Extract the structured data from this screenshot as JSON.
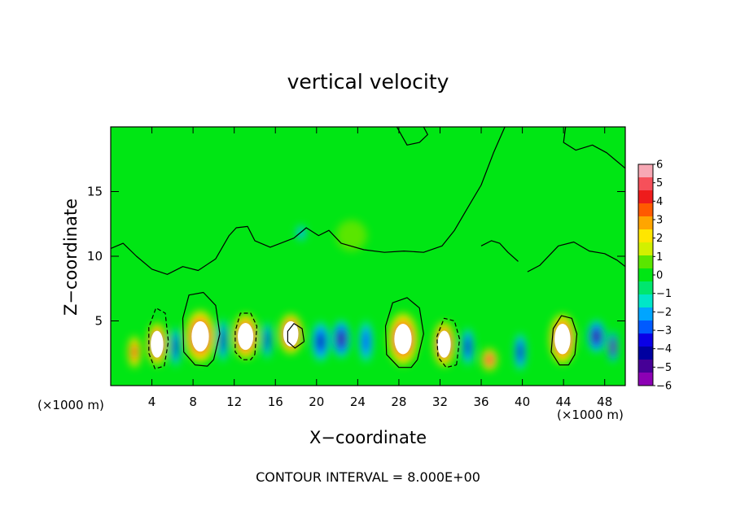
{
  "chart_data": {
    "type": "heatmap",
    "title": "vertical velocity",
    "xlabel": "X−coordinate",
    "ylabel": "Z−coordinate",
    "x_unit": "(×1000 m)",
    "contour_note": "CONTOUR INTERVAL = 8.000E+00",
    "xlim": [
      0,
      50
    ],
    "ylim": [
      0,
      20
    ],
    "x_ticks": [
      4,
      8,
      12,
      16,
      20,
      24,
      28,
      32,
      36,
      40,
      44,
      48
    ],
    "y_ticks": [
      5,
      10,
      15
    ],
    "colorbar": {
      "range": [
        -6,
        6
      ],
      "tick_labels": [
        "6",
        "5",
        "4",
        "3",
        "2",
        "1",
        "0",
        "−1",
        "−2",
        "−3",
        "−4",
        "−5",
        "−6"
      ],
      "colors": [
        "#f7a8b4",
        "#f6505a",
        "#ee1c1c",
        "#ff5a00",
        "#ffa500",
        "#ffe600",
        "#d2f000",
        "#5ae600",
        "#00e614",
        "#00e66e",
        "#00e6c8",
        "#00a5ff",
        "#005aff",
        "#0a00e6",
        "#0000a0",
        "#460096",
        "#8c00b4"
      ]
    },
    "cells": [
      {
        "x": 2.3,
        "z": 2.6,
        "w": 1.3,
        "h": 2.6,
        "value": 4
      },
      {
        "x": 4.5,
        "z": 3.2,
        "w": 2.0,
        "h": 3.4,
        "value": 7
      },
      {
        "x": 6.3,
        "z": 3.0,
        "w": 1.0,
        "h": 3.2,
        "value": -4
      },
      {
        "x": 8.7,
        "z": 3.8,
        "w": 3.0,
        "h": 4.2,
        "value": 12
      },
      {
        "x": 10.9,
        "z": 3.5,
        "w": 1.0,
        "h": 3.5,
        "value": -4
      },
      {
        "x": 13.1,
        "z": 3.8,
        "w": 2.6,
        "h": 3.6,
        "value": 10
      },
      {
        "x": 15.2,
        "z": 3.5,
        "w": 0.9,
        "h": 3.0,
        "value": -4
      },
      {
        "x": 17.5,
        "z": 4.0,
        "w": 2.4,
        "h": 3.2,
        "value": 7
      },
      {
        "x": 20.4,
        "z": 3.4,
        "w": 1.8,
        "h": 3.2,
        "value": -4
      },
      {
        "x": 22.4,
        "z": 3.6,
        "w": 1.8,
        "h": 3.0,
        "value": -5
      },
      {
        "x": 24.8,
        "z": 3.4,
        "w": 1.4,
        "h": 3.4,
        "value": -3
      },
      {
        "x": 28.4,
        "z": 3.6,
        "w": 3.0,
        "h": 4.2,
        "value": 12
      },
      {
        "x": 32.4,
        "z": 3.2,
        "w": 2.2,
        "h": 3.6,
        "value": 10
      },
      {
        "x": 34.7,
        "z": 3.0,
        "w": 1.2,
        "h": 3.0,
        "value": -4
      },
      {
        "x": 36.8,
        "z": 2.0,
        "w": 1.6,
        "h": 1.8,
        "value": 5
      },
      {
        "x": 39.8,
        "z": 2.6,
        "w": 1.2,
        "h": 3.0,
        "value": -4
      },
      {
        "x": 43.9,
        "z": 3.6,
        "w": 2.6,
        "h": 4.0,
        "value": 9
      },
      {
        "x": 47.2,
        "z": 3.8,
        "w": 1.8,
        "h": 2.6,
        "value": -5
      },
      {
        "x": 48.8,
        "z": 3.0,
        "w": 1.0,
        "h": 2.5,
        "value": -6
      },
      {
        "x": 18.5,
        "z": 11.8,
        "w": 1.0,
        "h": 1.3,
        "value": -2
      },
      {
        "x": 23.4,
        "z": 11.6,
        "w": 3.0,
        "h": 2.4,
        "value": 1
      }
    ],
    "contours": [
      {
        "level": 0,
        "points": [
          [
            0,
            10.6
          ],
          [
            1.2,
            11.0
          ],
          [
            2.5,
            10.0
          ],
          [
            4.0,
            9.0
          ],
          [
            5.5,
            8.6
          ],
          [
            7.0,
            9.2
          ],
          [
            8.5,
            8.9
          ],
          [
            10.2,
            9.8
          ],
          [
            11.5,
            11.6
          ],
          [
            12.2,
            12.2
          ],
          [
            13.3,
            12.3
          ],
          [
            14.0,
            11.2
          ],
          [
            15.5,
            10.7
          ],
          [
            16.5,
            11.0
          ],
          [
            17.8,
            11.4
          ],
          [
            19.0,
            12.2
          ],
          [
            20.2,
            11.6
          ],
          [
            21.2,
            12.0
          ],
          [
            22.4,
            11.0
          ],
          [
            24.6,
            10.5
          ],
          [
            26.6,
            10.3
          ],
          [
            28.5,
            10.4
          ],
          [
            30.4,
            10.3
          ],
          [
            32.2,
            10.8
          ],
          [
            33.4,
            12.0
          ],
          [
            34.5,
            13.5
          ],
          [
            36.0,
            15.5
          ],
          [
            37.2,
            18.0
          ],
          [
            38.3,
            20.0
          ]
        ]
      },
      {
        "level": 0,
        "points": [
          [
            27.8,
            20.0
          ],
          [
            28.8,
            18.6
          ],
          [
            30.0,
            18.8
          ],
          [
            30.8,
            19.4
          ],
          [
            30.4,
            20.0
          ]
        ]
      },
      {
        "level": 0,
        "points": [
          [
            44.2,
            20.0
          ],
          [
            44.0,
            18.8
          ],
          [
            45.2,
            18.2
          ],
          [
            46.8,
            18.6
          ],
          [
            48.2,
            18.0
          ],
          [
            50.0,
            16.8
          ]
        ]
      },
      {
        "level": 0,
        "points": [
          [
            40.5,
            8.8
          ],
          [
            41.7,
            9.3
          ],
          [
            43.5,
            10.8
          ],
          [
            45.0,
            11.1
          ],
          [
            46.5,
            10.4
          ],
          [
            48.0,
            10.2
          ],
          [
            49.2,
            9.7
          ],
          [
            50.0,
            9.2
          ]
        ]
      },
      {
        "level": 0,
        "points": [
          [
            36.0,
            10.8
          ],
          [
            37.0,
            11.2
          ],
          [
            37.8,
            11.0
          ],
          [
            38.6,
            10.3
          ],
          [
            39.6,
            9.6
          ]
        ]
      },
      {
        "level": 8,
        "points": [
          [
            10.0,
            2.0
          ],
          [
            10.6,
            4.0
          ],
          [
            10.2,
            6.2
          ],
          [
            9.0,
            7.2
          ],
          [
            7.6,
            7.0
          ],
          [
            7.0,
            5.2
          ],
          [
            7.1,
            2.6
          ],
          [
            8.2,
            1.6
          ],
          [
            9.4,
            1.5
          ],
          [
            10.0,
            2.0
          ]
        ]
      },
      {
        "level": 8,
        "points": [
          [
            29.8,
            2.0
          ],
          [
            30.4,
            4.0
          ],
          [
            30.0,
            6.0
          ],
          [
            28.8,
            6.8
          ],
          [
            27.4,
            6.4
          ],
          [
            26.7,
            4.6
          ],
          [
            26.8,
            2.4
          ],
          [
            28.0,
            1.4
          ],
          [
            29.2,
            1.4
          ],
          [
            29.8,
            2.0
          ]
        ]
      },
      {
        "level": 8,
        "points": [
          [
            45.1,
            2.4
          ],
          [
            45.3,
            4.0
          ],
          [
            44.8,
            5.2
          ],
          [
            43.8,
            5.4
          ],
          [
            43.0,
            4.4
          ],
          [
            42.8,
            2.6
          ],
          [
            43.6,
            1.6
          ],
          [
            44.5,
            1.6
          ],
          [
            45.1,
            2.4
          ]
        ]
      },
      {
        "level": 8,
        "points": [
          [
            18.8,
            3.4
          ],
          [
            18.6,
            4.4
          ],
          [
            17.8,
            4.8
          ],
          [
            17.2,
            4.2
          ],
          [
            17.2,
            3.4
          ],
          [
            17.9,
            2.9
          ],
          [
            18.8,
            3.4
          ]
        ]
      },
      {
        "level": -8,
        "points": [
          [
            5.2,
            1.5
          ],
          [
            5.6,
            3.4
          ],
          [
            5.3,
            5.6
          ],
          [
            4.4,
            6.0
          ],
          [
            3.7,
            4.5
          ],
          [
            3.7,
            2.5
          ],
          [
            4.3,
            1.3
          ],
          [
            5.2,
            1.5
          ]
        ]
      },
      {
        "level": -8,
        "points": [
          [
            14.0,
            2.4
          ],
          [
            14.2,
            4.6
          ],
          [
            13.6,
            5.6
          ],
          [
            12.6,
            5.6
          ],
          [
            12.1,
            4.2
          ],
          [
            12.1,
            2.6
          ],
          [
            12.8,
            2.0
          ],
          [
            13.6,
            2.0
          ],
          [
            14.0,
            2.4
          ]
        ]
      },
      {
        "level": -8,
        "points": [
          [
            33.6,
            1.6
          ],
          [
            33.9,
            3.6
          ],
          [
            33.4,
            5.0
          ],
          [
            32.4,
            5.2
          ],
          [
            31.7,
            3.8
          ],
          [
            31.8,
            2.2
          ],
          [
            32.6,
            1.4
          ],
          [
            33.6,
            1.6
          ]
        ]
      }
    ]
  }
}
